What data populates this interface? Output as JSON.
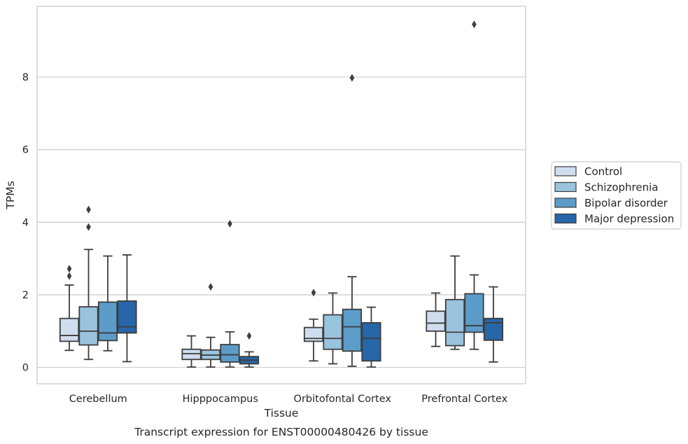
{
  "chart_data": {
    "type": "box",
    "caption": "Transcript expression for ENST00000480426 by tissue",
    "xlabel": "Tissue",
    "ylabel": "TPMs",
    "ylim": [
      -0.45,
      9.95
    ],
    "yticks": [
      0,
      2,
      4,
      6,
      8
    ],
    "grid": true,
    "legend_position": "right",
    "categories": [
      "Cerebellum",
      "Hipppocampus",
      "Orbitofontal Cortex",
      "Prefrontal Cortex"
    ],
    "series": [
      {
        "name": "Control",
        "color": "#cfdeef",
        "boxes": [
          {
            "whislo": 0.47,
            "q1": 0.72,
            "med": 0.88,
            "q3": 1.35,
            "whishi": 2.27,
            "fliers": [
              2.52,
              2.72
            ]
          },
          {
            "whislo": 0.01,
            "q1": 0.22,
            "med": 0.38,
            "q3": 0.5,
            "whishi": 0.87,
            "fliers": []
          },
          {
            "whislo": 0.18,
            "q1": 0.72,
            "med": 0.8,
            "q3": 1.1,
            "whishi": 1.33,
            "fliers": [
              2.06
            ]
          },
          {
            "whislo": 0.58,
            "q1": 1.0,
            "med": 1.22,
            "q3": 1.55,
            "whishi": 2.05,
            "fliers": []
          }
        ]
      },
      {
        "name": "Schizophrenia",
        "color": "#9ac3de",
        "boxes": [
          {
            "whislo": 0.22,
            "q1": 0.62,
            "med": 1.0,
            "q3": 1.67,
            "whishi": 3.25,
            "fliers": [
              3.87,
              4.35
            ]
          },
          {
            "whislo": 0.01,
            "q1": 0.22,
            "med": 0.34,
            "q3": 0.48,
            "whishi": 0.83,
            "fliers": [
              2.22
            ]
          },
          {
            "whislo": 0.1,
            "q1": 0.5,
            "med": 0.8,
            "q3": 1.45,
            "whishi": 2.05,
            "fliers": []
          },
          {
            "whislo": 0.5,
            "q1": 0.6,
            "med": 0.97,
            "q3": 1.87,
            "whishi": 3.07,
            "fliers": []
          }
        ]
      },
      {
        "name": "Bipolar disorder",
        "color": "#5b9cc9",
        "boxes": [
          {
            "whislo": 0.46,
            "q1": 0.74,
            "med": 0.95,
            "q3": 1.8,
            "whishi": 3.07,
            "fliers": []
          },
          {
            "whislo": 0.01,
            "q1": 0.15,
            "med": 0.35,
            "q3": 0.63,
            "whishi": 0.98,
            "fliers": [
              3.96
            ]
          },
          {
            "whislo": 0.03,
            "q1": 0.45,
            "med": 1.12,
            "q3": 1.6,
            "whishi": 2.5,
            "fliers": [
              7.98
            ]
          },
          {
            "whislo": 0.5,
            "q1": 0.97,
            "med": 1.15,
            "q3": 2.03,
            "whishi": 2.55,
            "fliers": [
              9.45
            ]
          }
        ]
      },
      {
        "name": "Major depression",
        "color": "#2766a8",
        "boxes": [
          {
            "whislo": 0.16,
            "q1": 0.95,
            "med": 1.12,
            "q3": 1.83,
            "whishi": 3.1,
            "fliers": []
          },
          {
            "whislo": 0.01,
            "q1": 0.1,
            "med": 0.2,
            "q3": 0.3,
            "whishi": 0.43,
            "fliers": [
              0.87
            ]
          },
          {
            "whislo": 0.01,
            "q1": 0.18,
            "med": 0.8,
            "q3": 1.23,
            "whishi": 1.66,
            "fliers": []
          },
          {
            "whislo": 0.15,
            "q1": 0.75,
            "med": 1.23,
            "q3": 1.35,
            "whishi": 2.22,
            "fliers": []
          }
        ]
      }
    ]
  }
}
